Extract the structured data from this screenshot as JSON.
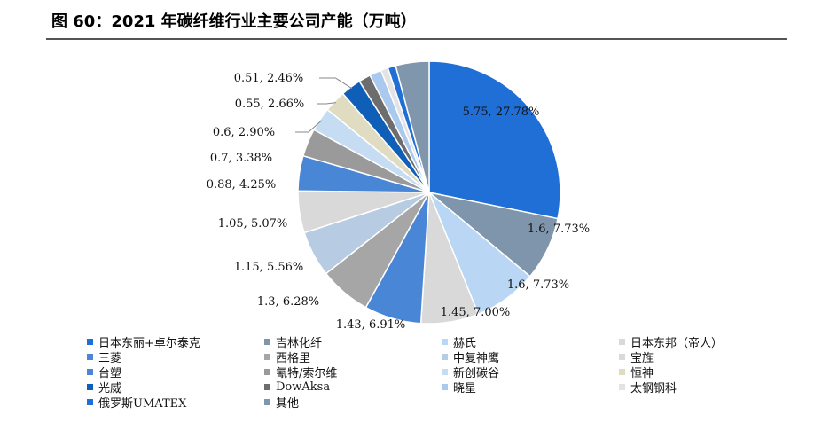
{
  "title": "图 60：2021 年碳纤维行业主要公司产能（万吨）",
  "chart_data": {
    "type": "pie",
    "title": "图 60：2021 年碳纤维行业主要公司产能（万吨）",
    "unit": "万吨",
    "legend_position": "bottom",
    "slices": [
      {
        "name": "日本东丽+卓尔泰克",
        "value": 5.75,
        "percent": 27.78,
        "label": "5.75, 27.78%",
        "color": "#1f6fd6"
      },
      {
        "name": "吉林化纤",
        "value": 1.6,
        "percent": 7.73,
        "label": "1.6, 7.73%",
        "color": "#7f95ac"
      },
      {
        "name": "赫氏",
        "value": 1.6,
        "percent": 7.73,
        "label": "1.6, 7.73%",
        "color": "#b9d6f4"
      },
      {
        "name": "日本东邦（帝人）",
        "value": 1.45,
        "percent": 7.0,
        "label": "1.45, 7.00%",
        "color": "#d9d9d9"
      },
      {
        "name": "三菱",
        "value": 1.43,
        "percent": 6.91,
        "label": "1.43, 6.91%",
        "color": "#4a86d6"
      },
      {
        "name": "西格里",
        "value": 1.3,
        "percent": 6.28,
        "label": "1.3, 6.28%",
        "color": "#a6a6a6"
      },
      {
        "name": "中复神鹰",
        "value": 1.15,
        "percent": 5.56,
        "label": "1.15, 5.56%",
        "color": "#b7cbe3"
      },
      {
        "name": "宝旌",
        "value": 1.05,
        "percent": 5.07,
        "label": "1.05, 5.07%",
        "color": "#d9d9d9"
      },
      {
        "name": "台塑",
        "value": 0.88,
        "percent": 4.25,
        "label": "0.88, 4.25%",
        "color": "#4a86d6"
      },
      {
        "name": "氰特/索尔维",
        "value": 0.7,
        "percent": 3.38,
        "label": "0.7, 3.38%",
        "color": "#9a9a9a"
      },
      {
        "name": "新创碳谷",
        "value": 0.6,
        "percent": 2.9,
        "label": "0.6, 2.90%",
        "color": "#c6dcf2"
      },
      {
        "name": "恒神",
        "value": 0.55,
        "percent": 2.66,
        "label": "0.55, 2.66%",
        "color": "#e0dcc2"
      },
      {
        "name": "光威",
        "value": 0.51,
        "percent": 2.46,
        "label": "0.51, 2.46%",
        "color": "#0f5fb8"
      },
      {
        "name": "DowAksa",
        "value": 0.3,
        "percent": 1.45,
        "label": "",
        "color": "#6d6d6d"
      },
      {
        "name": "晓星",
        "value": 0.3,
        "percent": 1.45,
        "label": "",
        "color": "#a9c9ee"
      },
      {
        "name": "太钢钢科",
        "value": 0.18,
        "percent": 0.87,
        "label": "",
        "color": "#e3e3e3"
      },
      {
        "name": "俄罗斯UMATEX",
        "value": 0.2,
        "percent": 0.97,
        "label": "",
        "color": "#1f6fd6"
      },
      {
        "name": "其他",
        "value": 0.84,
        "percent": 4.06,
        "label": "",
        "color": "#8096ad"
      }
    ]
  }
}
